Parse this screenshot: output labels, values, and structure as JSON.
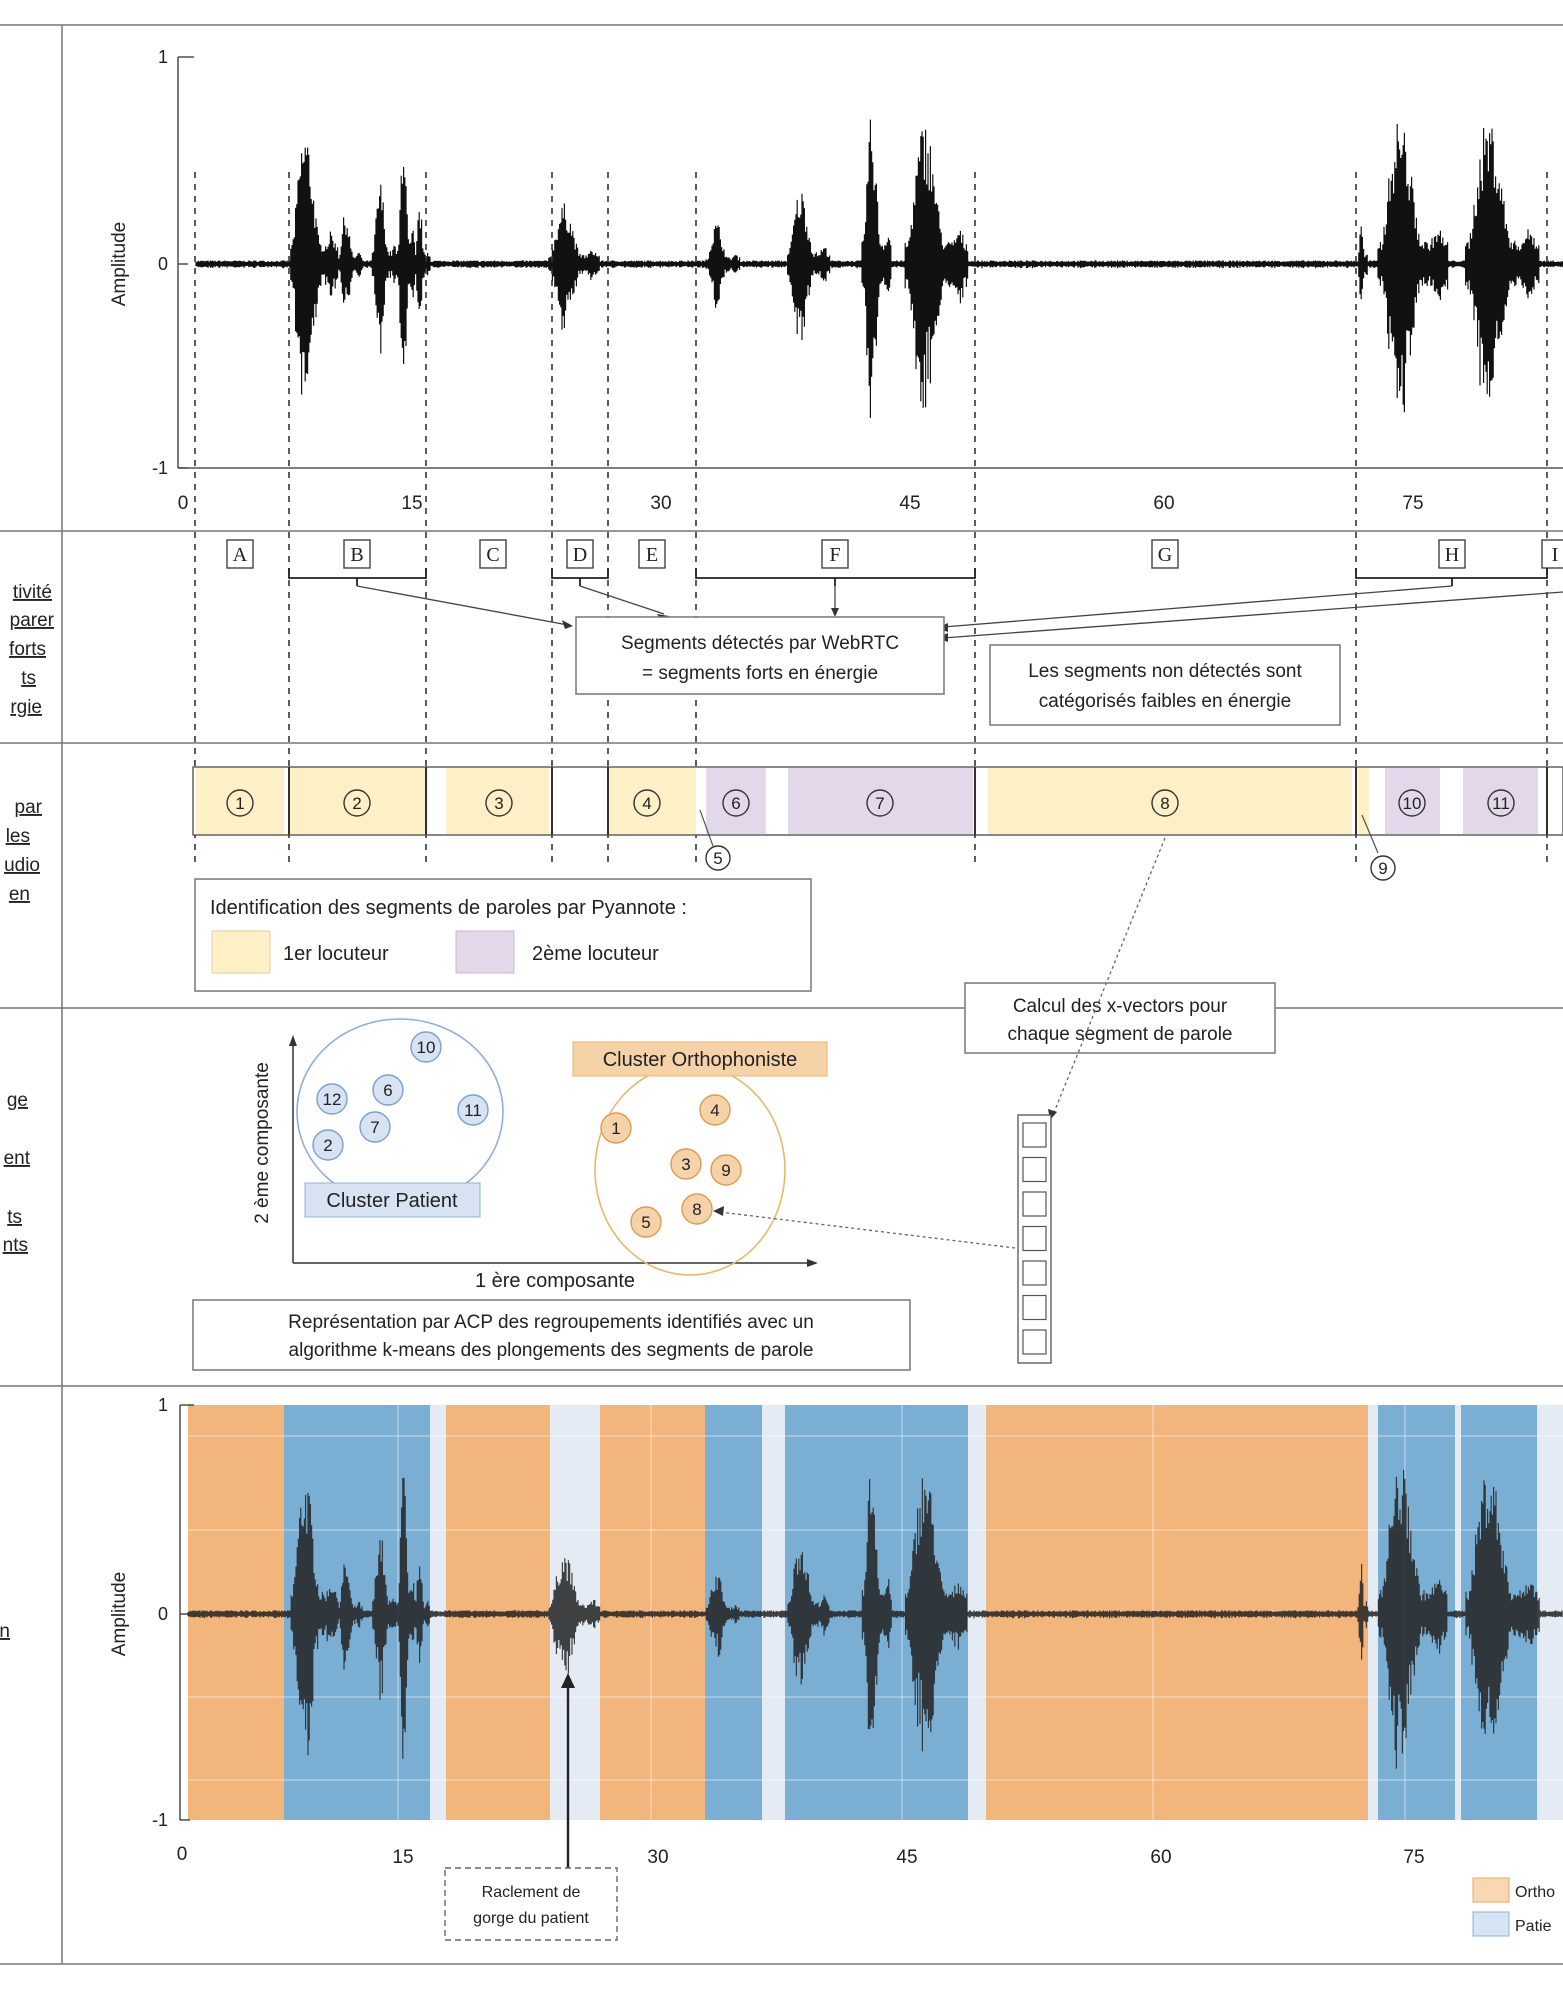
{
  "colors": {
    "speaker1_fill": "#fdefc6",
    "speaker2_fill": "#e3d7ea",
    "ortho_fill": "#f2b57c",
    "patient_fill": "#7aaed3",
    "light_band": "#e4ebf5",
    "patient_cluster_stroke": "#8fb0d8",
    "patient_cluster_fill": "#d7e3f2",
    "ortho_cluster_stroke": "#e8b76c",
    "ortho_cluster_fill": "#f6d2a8"
  },
  "waveform_top": {
    "ylabel": "Amplitude",
    "yticks": [
      "1",
      "0",
      "-1"
    ],
    "xticks": [
      "0",
      "15",
      "30",
      "45",
      "60",
      "75"
    ]
  },
  "vad": {
    "letters": [
      "A",
      "B",
      "C",
      "D",
      "E",
      "F",
      "G",
      "H",
      "I"
    ],
    "strong_box": [
      "Segments détectés par WebRTC",
      "= segments forts en énergie"
    ],
    "weak_box": [
      "Les segments non détectés sont",
      "catégorisés faibles en énergie"
    ],
    "left_labels": [
      "tivité",
      "parer",
      "forts",
      "ts",
      "rgie"
    ]
  },
  "pyannote": {
    "segments": [
      "1",
      "2",
      "3",
      "4",
      "5",
      "6",
      "7",
      "8",
      "9",
      "10",
      "11"
    ],
    "legend_title": "Identification des segments de paroles par Pyannote :",
    "legend_speaker1": "1er locuteur",
    "legend_speaker2": "2ème locuteur",
    "left_labels": [
      "par",
      "les",
      "udio",
      "en"
    ]
  },
  "clustering": {
    "xvector_box": [
      "Calcul des x-vectors pour",
      "chaque segment de parole"
    ],
    "ortho_cluster_label": "Cluster Orthophoniste",
    "patient_cluster_label": "Cluster Patient",
    "patient_points": [
      "10",
      "12",
      "6",
      "11",
      "7",
      "2"
    ],
    "ortho_points": [
      "1",
      "4",
      "3",
      "9",
      "8",
      "5"
    ],
    "xlabel": "1 ère composante",
    "ylabel": "2 ème composante",
    "caption": [
      "Représentation par ACP des regroupements identifiés avec un",
      "algorithme k-means des plongements des segments de parole"
    ],
    "left_labels": [
      "ge",
      "ent",
      "ts",
      "nts",
      ""
    ]
  },
  "waveform_bottom": {
    "ylabel": "Amplitude",
    "yticks": [
      "1",
      "0",
      "-1"
    ],
    "xticks": [
      "0",
      "15",
      "30",
      "45",
      "60",
      "75"
    ],
    "annotation": [
      "Raclement de",
      "gorge du patient"
    ],
    "legend_ortho": "Ortho",
    "legend_patient": "Patie",
    "left_labels": [
      "n"
    ]
  }
}
